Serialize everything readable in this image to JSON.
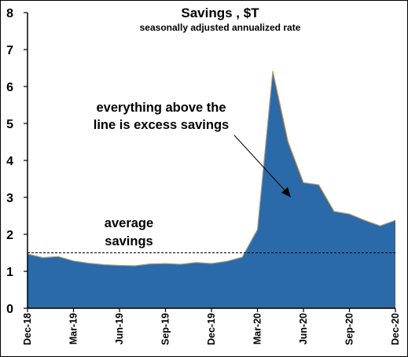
{
  "chart_data": {
    "type": "area",
    "title": "Savings , $T",
    "subtitle": "seasonally adjusted annualized rate",
    "xlabel": "",
    "ylabel": "",
    "ylim": [
      0,
      8
    ],
    "yticks": [
      "0",
      "1",
      "2",
      "3",
      "4",
      "5",
      "6",
      "7",
      "8"
    ],
    "x": [
      "Dec-18",
      "Jan-19",
      "Feb-19",
      "Mar-19",
      "Apr-19",
      "May-19",
      "Jun-19",
      "Jul-19",
      "Aug-19",
      "Sep-19",
      "Oct-19",
      "Nov-19",
      "Dec-19",
      "Jan-20",
      "Feb-20",
      "Mar-20",
      "Apr-20",
      "May-20",
      "Jun-20",
      "Jul-20",
      "Aug-20",
      "Sep-20",
      "Oct-20",
      "Nov-20",
      "Dec-20"
    ],
    "xtick_labels": [
      "Dec-18",
      "Mar-19",
      "Jun-19",
      "Sep-19",
      "Dec-19",
      "Mar-20",
      "Jun-20",
      "Sep-20",
      "Dec-20"
    ],
    "series": [
      {
        "values": [
          1.47,
          1.37,
          1.4,
          1.28,
          1.22,
          1.18,
          1.16,
          1.15,
          1.2,
          1.21,
          1.19,
          1.24,
          1.21,
          1.27,
          1.38,
          2.13,
          6.42,
          4.5,
          3.4,
          3.34,
          2.62,
          2.55,
          2.38,
          2.23,
          2.38
        ]
      }
    ],
    "reference_line": {
      "label": "average savings",
      "value": 1.5
    },
    "annotations": [
      {
        "line1": "everything above the",
        "line2": "line is excess savings"
      },
      {
        "line1": "average",
        "line2": "savings"
      }
    ],
    "colors": {
      "fill": "#2b6aa8",
      "edge": "#c49a5e"
    },
    "grid": false,
    "legend": "none"
  }
}
